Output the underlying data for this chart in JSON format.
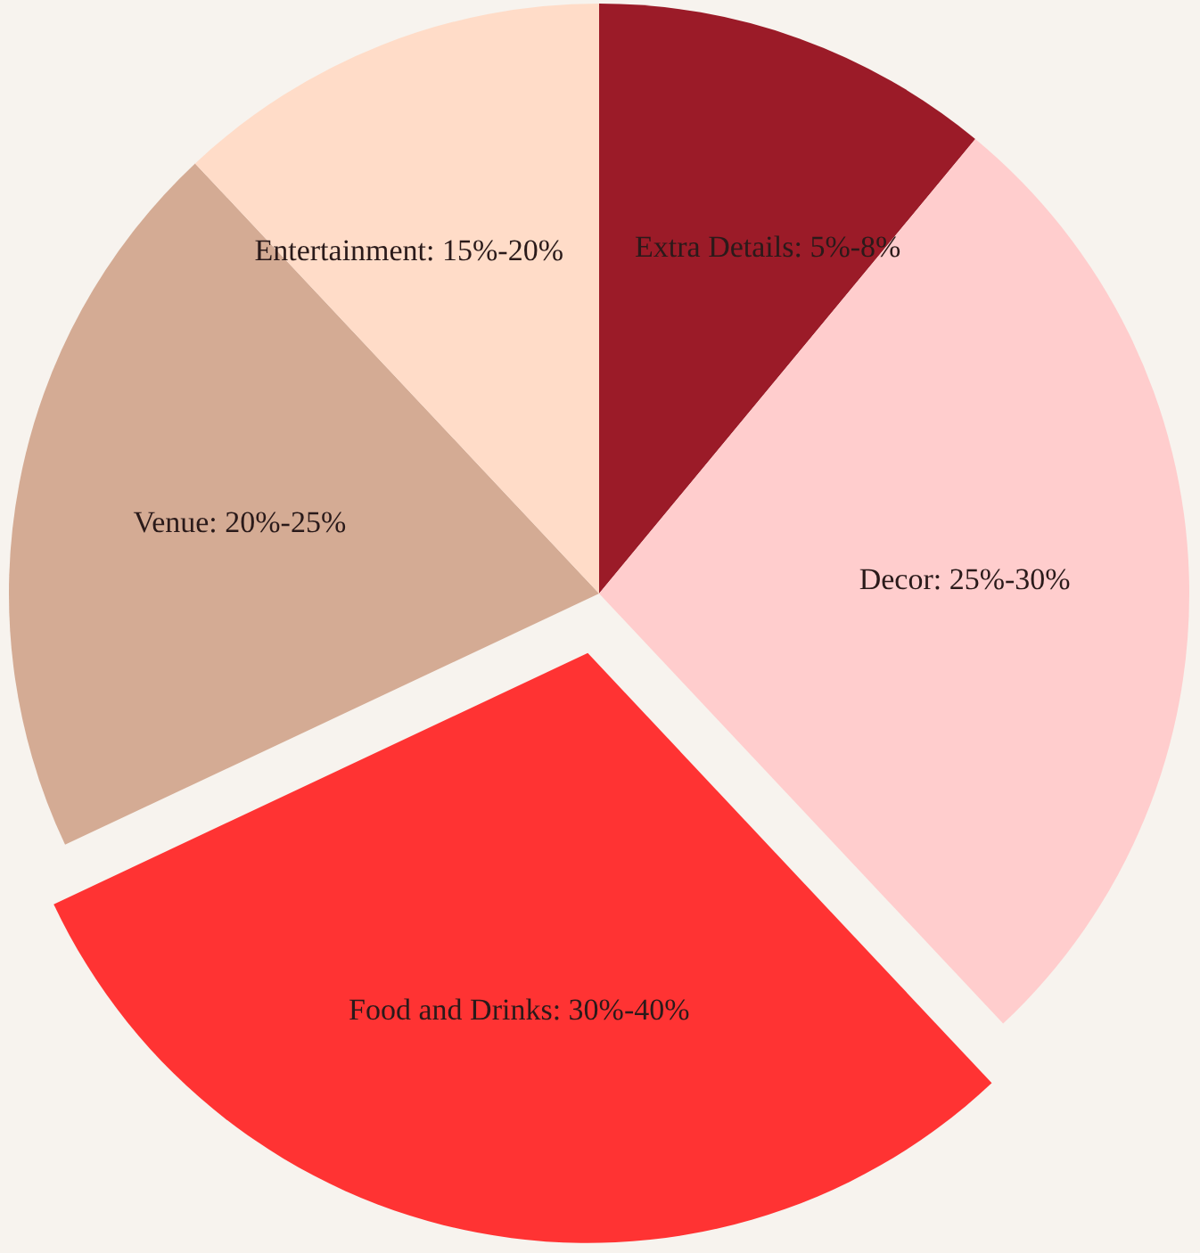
{
  "chart_data": {
    "type": "pie",
    "categories": [
      "Extra Details: 5%-8%",
      "Decor: 25%-30%",
      "Food and Drinks: 30%-40%",
      "Venue: 20%-25%",
      "Entertainment: 15%-20%"
    ],
    "values": [
      11,
      27,
      30,
      20,
      12
    ],
    "colors": [
      "#9b1b28",
      "#ffcdcd",
      "#ff3333",
      "#d4ab94",
      "#ffdcc8"
    ]
  }
}
